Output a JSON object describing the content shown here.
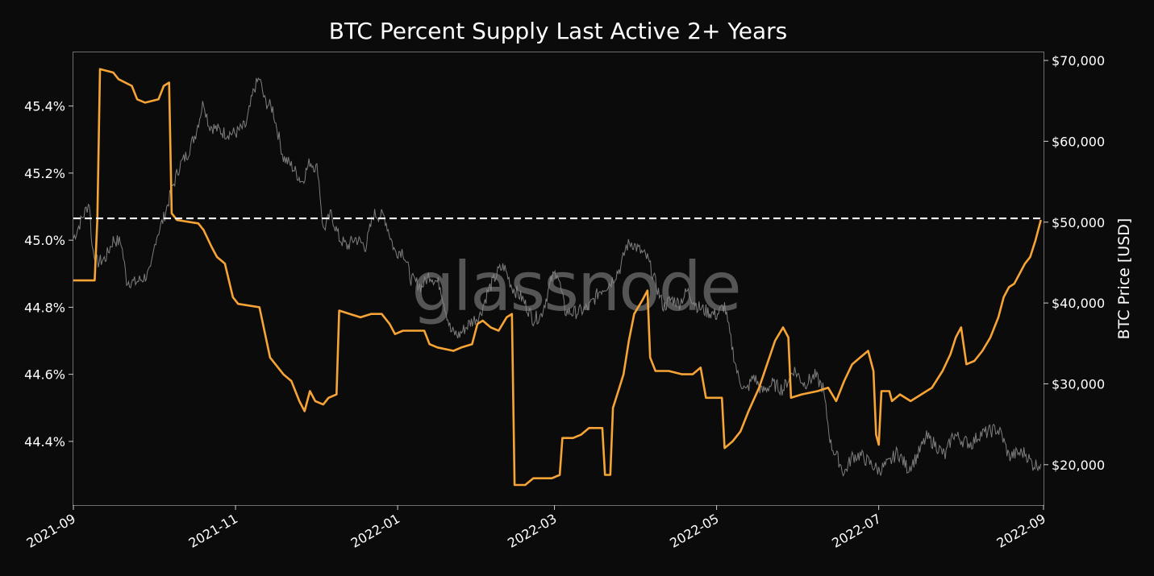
{
  "chart_data": {
    "type": "line",
    "title": "BTC Percent Supply Last Active 2+ Years",
    "watermark": "glassnode",
    "x_tick_labels": [
      "2021-09",
      "2021-11",
      "2022-01",
      "2022-03",
      "2022-05",
      "2022-07",
      "2022-09"
    ],
    "x_range": [
      "2021-09-01",
      "2022-09-01"
    ],
    "y_left": {
      "tick_labels": [
        "44.4%",
        "44.6%",
        "44.8%",
        "45.0%",
        "45.2%",
        "45.4%"
      ],
      "tick_values": [
        44.4,
        44.6,
        44.8,
        45.0,
        45.2,
        45.4
      ],
      "range": [
        44.21,
        45.56
      ]
    },
    "y_right": {
      "label": "BTC Price [USD]",
      "tick_labels": [
        "$20,000",
        "$30,000",
        "$40,000",
        "$50,000",
        "$60,000",
        "$70,000"
      ],
      "tick_values": [
        20000,
        30000,
        40000,
        50000,
        60000,
        70000
      ],
      "range": [
        15000,
        71000
      ]
    },
    "reference_line": {
      "value": 45.065,
      "style": "dashed",
      "color": "#ffffff"
    },
    "grid": false,
    "legend": "none",
    "series": [
      {
        "axis": "left",
        "color": "#f7a436",
        "points": [
          [
            "2021-09-01",
            44.88
          ],
          [
            "2021-09-09",
            44.88
          ],
          [
            "2021-09-10",
            45.06
          ],
          [
            "2021-09-11",
            45.51
          ],
          [
            "2021-09-16",
            45.5
          ],
          [
            "2021-09-18",
            45.48
          ],
          [
            "2021-09-23",
            45.46
          ],
          [
            "2021-09-25",
            45.42
          ],
          [
            "2021-09-28",
            45.41
          ],
          [
            "2021-10-03",
            45.42
          ],
          [
            "2021-10-05",
            45.46
          ],
          [
            "2021-10-07",
            45.47
          ],
          [
            "2021-10-08",
            45.08
          ],
          [
            "2021-10-10",
            45.06
          ],
          [
            "2021-10-18",
            45.05
          ],
          [
            "2021-10-20",
            45.03
          ],
          [
            "2021-10-23",
            44.98
          ],
          [
            "2021-10-25",
            44.95
          ],
          [
            "2021-10-28",
            44.93
          ],
          [
            "2021-10-31",
            44.83
          ],
          [
            "2021-11-02",
            44.81
          ],
          [
            "2021-11-10",
            44.8
          ],
          [
            "2021-11-14",
            44.65
          ],
          [
            "2021-11-19",
            44.6
          ],
          [
            "2021-11-22",
            44.58
          ],
          [
            "2021-11-25",
            44.52
          ],
          [
            "2021-11-27",
            44.49
          ],
          [
            "2021-11-29",
            44.55
          ],
          [
            "2021-12-01",
            44.52
          ],
          [
            "2021-12-04",
            44.51
          ],
          [
            "2021-12-06",
            44.53
          ],
          [
            "2021-12-09",
            44.54
          ],
          [
            "2021-12-10",
            44.79
          ],
          [
            "2021-12-14",
            44.78
          ],
          [
            "2021-12-18",
            44.77
          ],
          [
            "2021-12-22",
            44.78
          ],
          [
            "2021-12-26",
            44.78
          ],
          [
            "2021-12-29",
            44.75
          ],
          [
            "2021-12-31",
            44.72
          ],
          [
            "2022-01-03",
            44.73
          ],
          [
            "2022-01-07",
            44.73
          ],
          [
            "2022-01-11",
            44.73
          ],
          [
            "2022-01-13",
            44.69
          ],
          [
            "2022-01-16",
            44.68
          ],
          [
            "2022-01-22",
            44.67
          ],
          [
            "2022-01-25",
            44.68
          ],
          [
            "2022-01-29",
            44.69
          ],
          [
            "2022-01-31",
            44.75
          ],
          [
            "2022-02-02",
            44.76
          ],
          [
            "2022-02-05",
            44.74
          ],
          [
            "2022-02-08",
            44.73
          ],
          [
            "2022-02-11",
            44.77
          ],
          [
            "2022-02-13",
            44.78
          ],
          [
            "2022-02-14",
            44.27
          ],
          [
            "2022-02-18",
            44.27
          ],
          [
            "2022-02-21",
            44.29
          ],
          [
            "2022-02-24",
            44.29
          ],
          [
            "2022-02-28",
            44.29
          ],
          [
            "2022-03-03",
            44.3
          ],
          [
            "2022-03-04",
            44.41
          ],
          [
            "2022-03-08",
            44.41
          ],
          [
            "2022-03-11",
            44.42
          ],
          [
            "2022-03-14",
            44.44
          ],
          [
            "2022-03-19",
            44.44
          ],
          [
            "2022-03-20",
            44.3
          ],
          [
            "2022-03-22",
            44.3
          ],
          [
            "2022-03-23",
            44.5
          ],
          [
            "2022-03-25",
            44.55
          ],
          [
            "2022-03-27",
            44.6
          ],
          [
            "2022-03-29",
            44.7
          ],
          [
            "2022-03-31",
            44.78
          ],
          [
            "2022-04-03",
            44.82
          ],
          [
            "2022-04-05",
            44.85
          ],
          [
            "2022-04-06",
            44.65
          ],
          [
            "2022-04-08",
            44.61
          ],
          [
            "2022-04-13",
            44.61
          ],
          [
            "2022-04-18",
            44.6
          ],
          [
            "2022-04-22",
            44.6
          ],
          [
            "2022-04-25",
            44.62
          ],
          [
            "2022-04-27",
            44.53
          ],
          [
            "2022-04-30",
            44.53
          ],
          [
            "2022-05-03",
            44.53
          ],
          [
            "2022-05-04",
            44.38
          ],
          [
            "2022-05-07",
            44.4
          ],
          [
            "2022-05-10",
            44.43
          ],
          [
            "2022-05-13",
            44.49
          ],
          [
            "2022-05-17",
            44.56
          ],
          [
            "2022-05-20",
            44.63
          ],
          [
            "2022-05-23",
            44.7
          ],
          [
            "2022-05-26",
            44.74
          ],
          [
            "2022-05-28",
            44.71
          ],
          [
            "2022-05-29",
            44.53
          ],
          [
            "2022-06-02",
            44.54
          ],
          [
            "2022-06-08",
            44.55
          ],
          [
            "2022-06-12",
            44.56
          ],
          [
            "2022-06-15",
            44.52
          ],
          [
            "2022-06-18",
            44.58
          ],
          [
            "2022-06-21",
            44.63
          ],
          [
            "2022-06-24",
            44.65
          ],
          [
            "2022-06-27",
            44.67
          ],
          [
            "2022-06-29",
            44.61
          ],
          [
            "2022-06-30",
            44.42
          ],
          [
            "2022-07-01",
            44.39
          ],
          [
            "2022-07-02",
            44.55
          ],
          [
            "2022-07-05",
            44.55
          ],
          [
            "2022-07-06",
            44.52
          ],
          [
            "2022-07-09",
            44.54
          ],
          [
            "2022-07-13",
            44.52
          ],
          [
            "2022-07-17",
            44.54
          ],
          [
            "2022-07-21",
            44.56
          ],
          [
            "2022-07-25",
            44.61
          ],
          [
            "2022-07-28",
            44.66
          ],
          [
            "2022-07-30",
            44.71
          ],
          [
            "2022-08-01",
            44.74
          ],
          [
            "2022-08-03",
            44.63
          ],
          [
            "2022-08-06",
            44.64
          ],
          [
            "2022-08-09",
            44.67
          ],
          [
            "2022-08-12",
            44.71
          ],
          [
            "2022-08-15",
            44.77
          ],
          [
            "2022-08-17",
            44.83
          ],
          [
            "2022-08-19",
            44.86
          ],
          [
            "2022-08-21",
            44.87
          ],
          [
            "2022-08-23",
            44.9
          ],
          [
            "2022-08-25",
            44.93
          ],
          [
            "2022-08-27",
            44.95
          ],
          [
            "2022-08-29",
            45.0
          ],
          [
            "2022-08-31",
            45.06
          ]
        ]
      },
      {
        "axis": "right",
        "color": "#8a8a8a",
        "points": [
          [
            "2021-09-01",
            48000
          ],
          [
            "2021-09-03",
            49500
          ],
          [
            "2021-09-05",
            51000
          ],
          [
            "2021-09-07",
            52500
          ],
          [
            "2021-09-08",
            47000
          ],
          [
            "2021-09-10",
            45000
          ],
          [
            "2021-09-13",
            45500
          ],
          [
            "2021-09-16",
            47800
          ],
          [
            "2021-09-19",
            47500
          ],
          [
            "2021-09-21",
            42800
          ],
          [
            "2021-09-24",
            42500
          ],
          [
            "2021-09-27",
            43000
          ],
          [
            "2021-09-30",
            43800
          ],
          [
            "2021-10-02",
            48000
          ],
          [
            "2021-10-05",
            50500
          ],
          [
            "2021-10-08",
            54000
          ],
          [
            "2021-10-11",
            57000
          ],
          [
            "2021-10-14",
            58500
          ],
          [
            "2021-10-17",
            61000
          ],
          [
            "2021-10-20",
            65000
          ],
          [
            "2021-10-22",
            62000
          ],
          [
            "2021-10-25",
            61500
          ],
          [
            "2021-10-28",
            61000
          ],
          [
            "2021-11-01",
            61000
          ],
          [
            "2021-11-05",
            62000
          ],
          [
            "2021-11-08",
            66500
          ],
          [
            "2021-11-10",
            67800
          ],
          [
            "2021-11-12",
            65000
          ],
          [
            "2021-11-15",
            64000
          ],
          [
            "2021-11-17",
            61000
          ],
          [
            "2021-11-19",
            58000
          ],
          [
            "2021-11-22",
            57000
          ],
          [
            "2021-11-26",
            55000
          ],
          [
            "2021-11-29",
            57500
          ],
          [
            "2021-12-02",
            56500
          ],
          [
            "2021-12-04",
            49000
          ],
          [
            "2021-12-07",
            51000
          ],
          [
            "2021-12-10",
            48000
          ],
          [
            "2021-12-13",
            47000
          ],
          [
            "2021-12-16",
            48000
          ],
          [
            "2021-12-20",
            47000
          ],
          [
            "2021-12-23",
            51000
          ],
          [
            "2021-12-27",
            50700
          ],
          [
            "2021-12-31",
            46300
          ],
          [
            "2022-01-03",
            46500
          ],
          [
            "2022-01-06",
            43000
          ],
          [
            "2022-01-10",
            42000
          ],
          [
            "2022-01-13",
            43500
          ],
          [
            "2022-01-17",
            42200
          ],
          [
            "2022-01-21",
            36500
          ],
          [
            "2022-01-24",
            36000
          ],
          [
            "2022-01-28",
            37500
          ],
          [
            "2022-02-01",
            38500
          ],
          [
            "2022-02-04",
            41500
          ],
          [
            "2022-02-08",
            44000
          ],
          [
            "2022-02-10",
            44500
          ],
          [
            "2022-02-13",
            42000
          ],
          [
            "2022-02-17",
            40500
          ],
          [
            "2022-02-21",
            38000
          ],
          [
            "2022-02-24",
            38500
          ],
          [
            "2022-02-28",
            43000
          ],
          [
            "2022-03-02",
            44000
          ],
          [
            "2022-03-05",
            39000
          ],
          [
            "2022-03-08",
            38800
          ],
          [
            "2022-03-11",
            39000
          ],
          [
            "2022-03-14",
            39500
          ],
          [
            "2022-03-18",
            41500
          ],
          [
            "2022-03-22",
            42500
          ],
          [
            "2022-03-26",
            44500
          ],
          [
            "2022-03-28",
            47000
          ],
          [
            "2022-03-30",
            47500
          ],
          [
            "2022-04-02",
            46500
          ],
          [
            "2022-04-05",
            45500
          ],
          [
            "2022-04-08",
            42500
          ],
          [
            "2022-04-11",
            39500
          ],
          [
            "2022-04-14",
            40500
          ],
          [
            "2022-04-17",
            40000
          ],
          [
            "2022-04-20",
            41500
          ],
          [
            "2022-04-24",
            39500
          ],
          [
            "2022-04-27",
            39000
          ],
          [
            "2022-05-01",
            38500
          ],
          [
            "2022-05-04",
            39700
          ],
          [
            "2022-05-06",
            36000
          ],
          [
            "2022-05-09",
            31000
          ],
          [
            "2022-05-12",
            29000
          ],
          [
            "2022-05-15",
            31000
          ],
          [
            "2022-05-18",
            29000
          ],
          [
            "2022-05-22",
            30000
          ],
          [
            "2022-05-26",
            29300
          ],
          [
            "2022-05-30",
            31800
          ],
          [
            "2022-06-03",
            30000
          ],
          [
            "2022-06-07",
            31000
          ],
          [
            "2022-06-10",
            29500
          ],
          [
            "2022-06-13",
            22500
          ],
          [
            "2022-06-16",
            20500
          ],
          [
            "2022-06-18",
            18900
          ],
          [
            "2022-06-21",
            21000
          ],
          [
            "2022-06-24",
            21200
          ],
          [
            "2022-06-28",
            20100
          ],
          [
            "2022-07-01",
            19300
          ],
          [
            "2022-07-05",
            20200
          ],
          [
            "2022-07-08",
            21600
          ],
          [
            "2022-07-12",
            19500
          ],
          [
            "2022-07-15",
            20800
          ],
          [
            "2022-07-19",
            23400
          ],
          [
            "2022-07-22",
            22600
          ],
          [
            "2022-07-26",
            21100
          ],
          [
            "2022-07-29",
            23800
          ],
          [
            "2022-08-02",
            22900
          ],
          [
            "2022-08-05",
            22600
          ],
          [
            "2022-08-08",
            23800
          ],
          [
            "2022-08-11",
            24000
          ],
          [
            "2022-08-14",
            24400
          ],
          [
            "2022-08-16",
            23900
          ],
          [
            "2022-08-19",
            21000
          ],
          [
            "2022-08-22",
            21400
          ],
          [
            "2022-08-25",
            21500
          ],
          [
            "2022-08-28",
            20000
          ],
          [
            "2022-08-31",
            20100
          ]
        ]
      }
    ]
  }
}
